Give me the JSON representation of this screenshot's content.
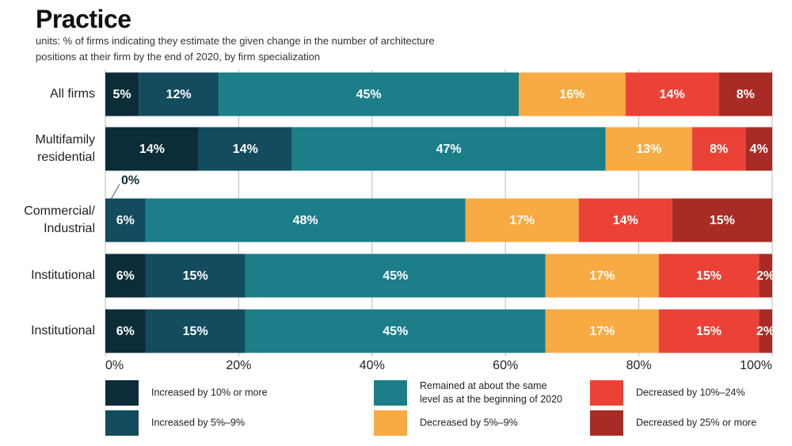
{
  "chart_data": {
    "type": "stacked-bar-horizontal",
    "title": "Practice",
    "subtitle": "units: % of firms indicating they estimate the given change in the number of architecture positions at their firm by the end of 2020, by firm specialization",
    "categories": [
      "All firms",
      "Multifamily\nresidential",
      "Commercial/\nIndustrial",
      "Institutional",
      "Institutional"
    ],
    "series": [
      {
        "name": "Increased by 10% or more",
        "color": "#0c2c37",
        "values": [
          5,
          14,
          0,
          6,
          6
        ],
        "value_labels": [
          "5%",
          "14%",
          "0%",
          "6%",
          "6%"
        ]
      },
      {
        "name": "Increased by 5%–9%",
        "color": "#134b5f",
        "values": [
          12,
          14,
          6,
          15,
          15
        ],
        "value_labels": [
          "12%",
          "14%",
          "6%",
          "15%",
          "15%"
        ]
      },
      {
        "name": "Remained at about the same level as at the beginning of 2020",
        "color": "#1b7e89",
        "values": [
          45,
          47,
          48,
          45,
          45
        ],
        "value_labels": [
          "45%",
          "47%",
          "48%",
          "45%",
          "45%"
        ]
      },
      {
        "name": "Decreased by 5%–9%",
        "color": "#f8aa43",
        "values": [
          16,
          13,
          17,
          17,
          17
        ],
        "value_labels": [
          "16%",
          "13%",
          "17%",
          "17%",
          "17%"
        ]
      },
      {
        "name": "Decreased by 10%–24%",
        "color": "#ec4137",
        "values": [
          14,
          8,
          14,
          15,
          15
        ],
        "value_labels": [
          "14%",
          "8%",
          "14%",
          "15%",
          "15%"
        ]
      },
      {
        "name": "Decreased by 25% or more",
        "color": "#a82c25",
        "values": [
          8,
          4,
          15,
          2,
          2
        ],
        "value_labels": [
          "8%",
          "4%",
          "15%",
          "2%",
          "2%"
        ]
      }
    ],
    "xlim": [
      0,
      100
    ],
    "xticks": [
      {
        "value": 0,
        "label": "0%"
      },
      {
        "value": 20,
        "label": "20%"
      },
      {
        "value": 40,
        "label": "40%"
      },
      {
        "value": 60,
        "label": "60%"
      },
      {
        "value": 80,
        "label": "80%"
      },
      {
        "value": 100,
        "label": "100%"
      }
    ],
    "grid": true
  }
}
